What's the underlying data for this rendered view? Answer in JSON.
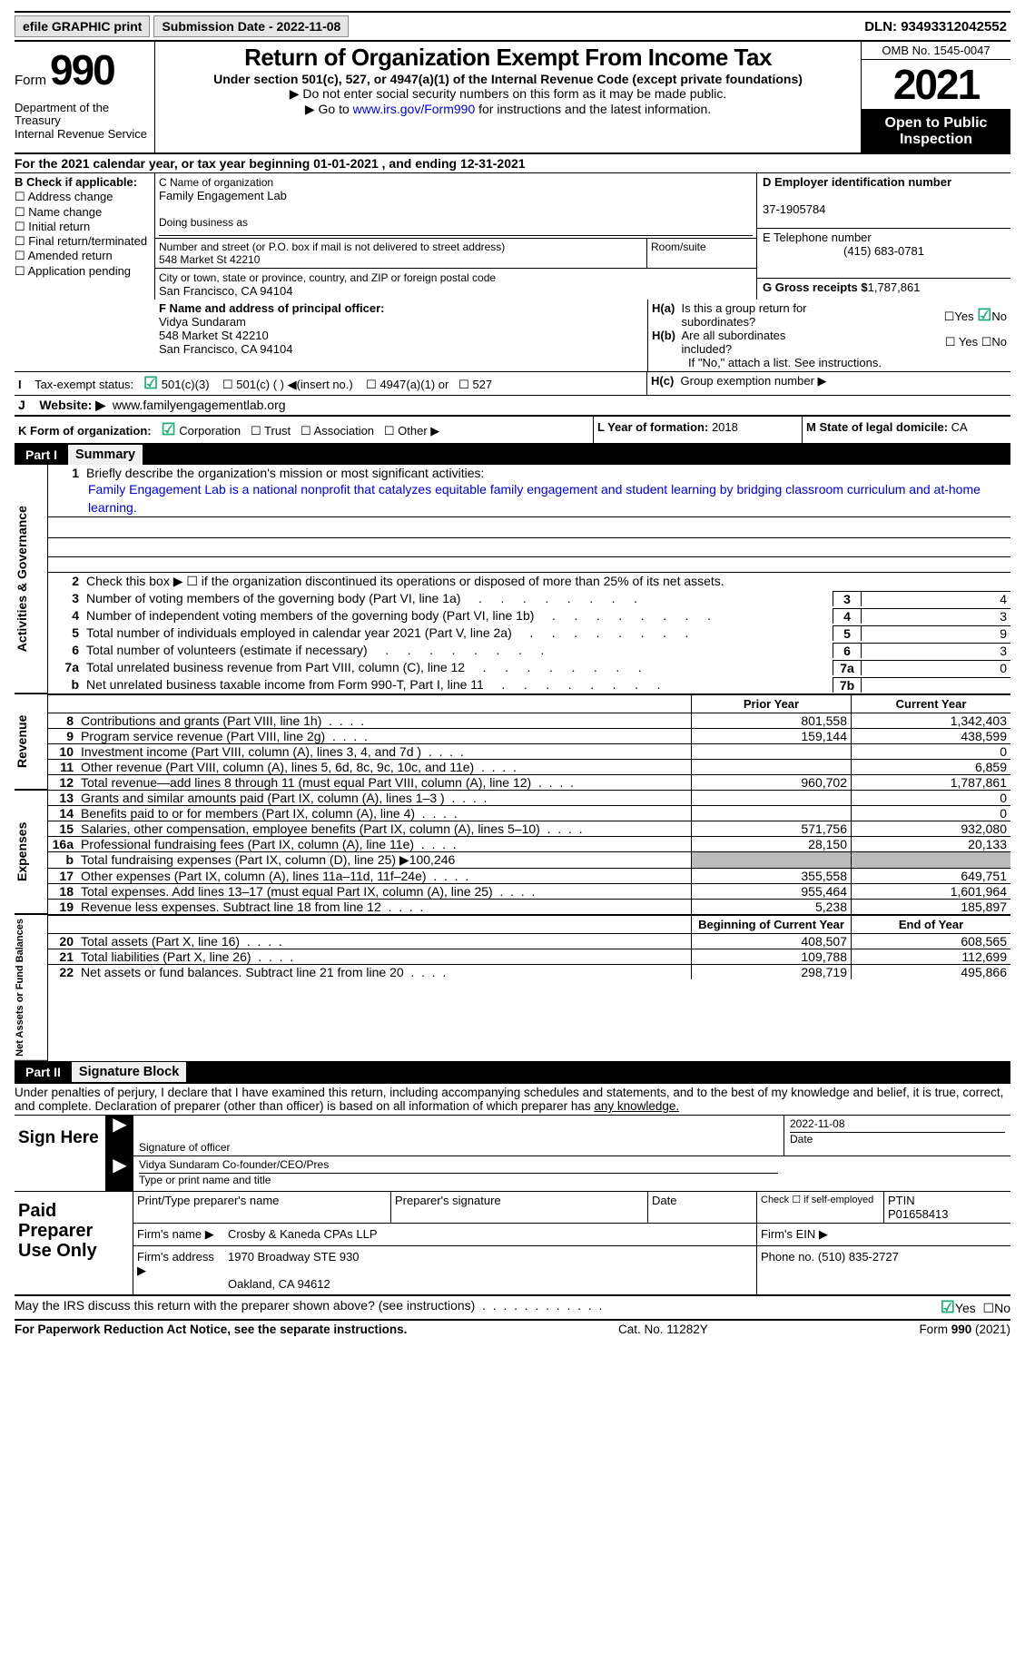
{
  "topbar": {
    "btn1": "efile GRAPHIC print",
    "btn2": "Submission Date - 2022-11-08",
    "dln": "DLN: 93493312042552"
  },
  "header": {
    "form_word": "Form",
    "form_num": "990",
    "title": "Return of Organization Exempt From Income Tax",
    "sub": "Under section 501(c), 527, or 4947(a)(1) of the Internal Revenue Code (except private foundations)",
    "note1": "▶ Do not enter social security numbers on this form as it may be made public.",
    "note2_pre": "▶ Go to ",
    "note2_link": "www.irs.gov/Form990",
    "note2_post": " for instructions and the latest information.",
    "dept": "Department of the Treasury\nInternal Revenue Service",
    "omb": "OMB No. 1545-0047",
    "year": "2021",
    "open": "Open to Public Inspection"
  },
  "lineA": {
    "prefix": "A ",
    "text": "For the 2021 calendar year, or tax year beginning 01-01-2021    , and ending 12-31-2021"
  },
  "boxB": {
    "title": "B Check if applicable:",
    "opts": [
      "Address change",
      "Name change",
      "Initial return",
      "Final return/terminated",
      "Amended return",
      "Application pending"
    ]
  },
  "boxC": {
    "name_lbl": "C Name of organization",
    "name": "Family Engagement Lab",
    "dba_lbl": "Doing business as",
    "addr_lbl": "Number and street (or P.O. box if mail is not delivered to street address)",
    "addr": "548 Market St 42210",
    "room_lbl": "Room/suite",
    "city_lbl": "City or town, state or province, country, and ZIP or foreign postal code",
    "city": "San Francisco, CA  94104"
  },
  "boxD": {
    "lbl": "D Employer identification number",
    "val": "37-1905784",
    "tel_lbl": "E Telephone number",
    "tel": "(415) 683-0781",
    "gross_lbl": "G Gross receipts $",
    "gross": "1,787,861"
  },
  "boxF": {
    "lbl": "F  Name and address of principal officer:",
    "name": "Vidya Sundaram",
    "addr1": "548 Market St 42210",
    "addr2": "San Francisco, CA  94104"
  },
  "boxH": {
    "a": "H(a)  Is this a group return for",
    "a2": "subordinates?",
    "b": "H(b)  Are all subordinates included?",
    "c": "If \"No,\" attach a list. See instructions.",
    "hc": "H(c)  Group exemption number ▶"
  },
  "rowI": {
    "lbl": "I    Tax-exempt status:",
    "o1": "501(c)(3)",
    "o2": "501(c) (  ) ◀(insert no.)",
    "o3": "4947(a)(1) or",
    "o4": "527"
  },
  "rowJ": {
    "lbl": "J    Website: ▶",
    "val": "www.familyengagementlab.org"
  },
  "rowK": {
    "lbl": "K Form of organization:",
    "o1": "Corporation",
    "o2": "Trust",
    "o3": "Association",
    "o4": "Other ▶",
    "l_lbl": "L Year of formation:",
    "l_val": "2018",
    "m_lbl": "M State of legal domicile:",
    "m_val": "CA"
  },
  "part1": {
    "num": "Part I",
    "title": "Summary",
    "q1": "Briefly describe the organization's mission or most significant activities:",
    "mission": "Family Engagement Lab is a national nonprofit that catalyzes equitable family engagement and student learning by bridging classroom curriculum and at-home learning.",
    "q2": "Check this box ▶ ☐  if the organization discontinued its operations or disposed of more than 25% of its net assets.",
    "rows": [
      {
        "n": "3",
        "d": "Number of voting members of the governing body (Part VI, line 1a)",
        "bn": "3",
        "bv": "4"
      },
      {
        "n": "4",
        "d": "Number of independent voting members of the governing body (Part VI, line 1b)",
        "bn": "4",
        "bv": "3"
      },
      {
        "n": "5",
        "d": "Total number of individuals employed in calendar year 2021 (Part V, line 2a)",
        "bn": "5",
        "bv": "9"
      },
      {
        "n": "6",
        "d": "Total number of volunteers (estimate if necessary)",
        "bn": "6",
        "bv": "3"
      },
      {
        "n": "7a",
        "d": "Total unrelated business revenue from Part VIII, column (C), line 12",
        "bn": "7a",
        "bv": "0"
      },
      {
        "n": "b",
        "d": "Net unrelated business taxable income from Form 990-T, Part I, line 11",
        "bn": "7b",
        "bv": ""
      }
    ],
    "fin_hdr": {
      "c1": "Prior Year",
      "c2": "Current Year"
    },
    "revenue": [
      {
        "n": "8",
        "d": "Contributions and grants (Part VIII, line 1h)",
        "v1": "801,558",
        "v2": "1,342,403"
      },
      {
        "n": "9",
        "d": "Program service revenue (Part VIII, line 2g)",
        "v1": "159,144",
        "v2": "438,599"
      },
      {
        "n": "10",
        "d": "Investment income (Part VIII, column (A), lines 3, 4, and 7d )",
        "v1": "",
        "v2": "0"
      },
      {
        "n": "11",
        "d": "Other revenue (Part VIII, column (A), lines 5, 6d, 8c, 9c, 10c, and 11e)",
        "v1": "",
        "v2": "6,859"
      },
      {
        "n": "12",
        "d": "Total revenue—add lines 8 through 11 (must equal Part VIII, column (A), line 12)",
        "v1": "960,702",
        "v2": "1,787,861"
      }
    ],
    "expenses": [
      {
        "n": "13",
        "d": "Grants and similar amounts paid (Part IX, column (A), lines 1–3 )",
        "v1": "",
        "v2": "0"
      },
      {
        "n": "14",
        "d": "Benefits paid to or for members (Part IX, column (A), line 4)",
        "v1": "",
        "v2": "0"
      },
      {
        "n": "15",
        "d": "Salaries, other compensation, employee benefits (Part IX, column (A), lines 5–10)",
        "v1": "571,756",
        "v2": "932,080"
      },
      {
        "n": "16a",
        "d": "Professional fundraising fees (Part IX, column (A), line 11e)",
        "v1": "28,150",
        "v2": "20,133"
      },
      {
        "n": "b",
        "d": "Total fundraising expenses (Part IX, column (D), line 25) ▶100,246",
        "grey": true
      },
      {
        "n": "17",
        "d": "Other expenses (Part IX, column (A), lines 11a–11d, 11f–24e)",
        "v1": "355,558",
        "v2": "649,751"
      },
      {
        "n": "18",
        "d": "Total expenses. Add lines 13–17 (must equal Part IX, column (A), line 25)",
        "v1": "955,464",
        "v2": "1,601,964"
      },
      {
        "n": "19",
        "d": "Revenue less expenses. Subtract line 18 from line 12",
        "v1": "5,238",
        "v2": "185,897"
      }
    ],
    "net_hdr": {
      "c1": "Beginning of Current Year",
      "c2": "End of Year"
    },
    "net": [
      {
        "n": "20",
        "d": "Total assets (Part X, line 16)",
        "v1": "408,507",
        "v2": "608,565"
      },
      {
        "n": "21",
        "d": "Total liabilities (Part X, line 26)",
        "v1": "109,788",
        "v2": "112,699"
      },
      {
        "n": "22",
        "d": "Net assets or fund balances. Subtract line 21 from line 20",
        "v1": "298,719",
        "v2": "495,866"
      }
    ],
    "vlabels": {
      "ag": "Activities & Governance",
      "rev": "Revenue",
      "exp": "Expenses",
      "net": "Net Assets or Fund Balances"
    }
  },
  "part2": {
    "num": "Part II",
    "title": "Signature Block",
    "perjury": "Under penalties of perjury, I declare that I have examined this return, including accompanying schedules and statements, and to the best of my knowledge and belief, it is true, correct, and complete. Declaration of preparer (other than officer) is based on all information of which preparer has ",
    "perjury_u": "any knowledge.",
    "sign_here": "Sign Here",
    "sig_officer": "Signature of officer",
    "sig_date": "2022-11-08",
    "sig_date_lbl": "Date",
    "officer_name": "Vidya Sundaram Co-founder/CEO/Pres",
    "officer_lbl": "Type or print name and title",
    "paid": "Paid Preparer Use Only",
    "prep_r1": {
      "c1": "Print/Type preparer's name",
      "c2": "Preparer's signature",
      "c3": "Date",
      "c4": "Check ☐ if self-employed",
      "c5": "PTIN",
      "ptin": "P01658413"
    },
    "firm_lbl": "Firm's name    ▶",
    "firm": "Crosby & Kaneda CPAs LLP",
    "firm_ein": "Firm's EIN ▶",
    "firm_addr_lbl": "Firm's address ▶",
    "firm_addr": "1970 Broadway STE 930",
    "firm_city": "Oakland, CA  94612",
    "phone_lbl": "Phone no.",
    "phone": "(510) 835-2727"
  },
  "discuss": "May the IRS discuss this return with the preparer shown above? (see instructions)",
  "footer": {
    "left": "For Paperwork Reduction Act Notice, see the separate instructions.",
    "mid": "Cat. No. 11282Y",
    "right_pre": "Form ",
    "right_bold": "990",
    "right_post": " (2021)"
  }
}
